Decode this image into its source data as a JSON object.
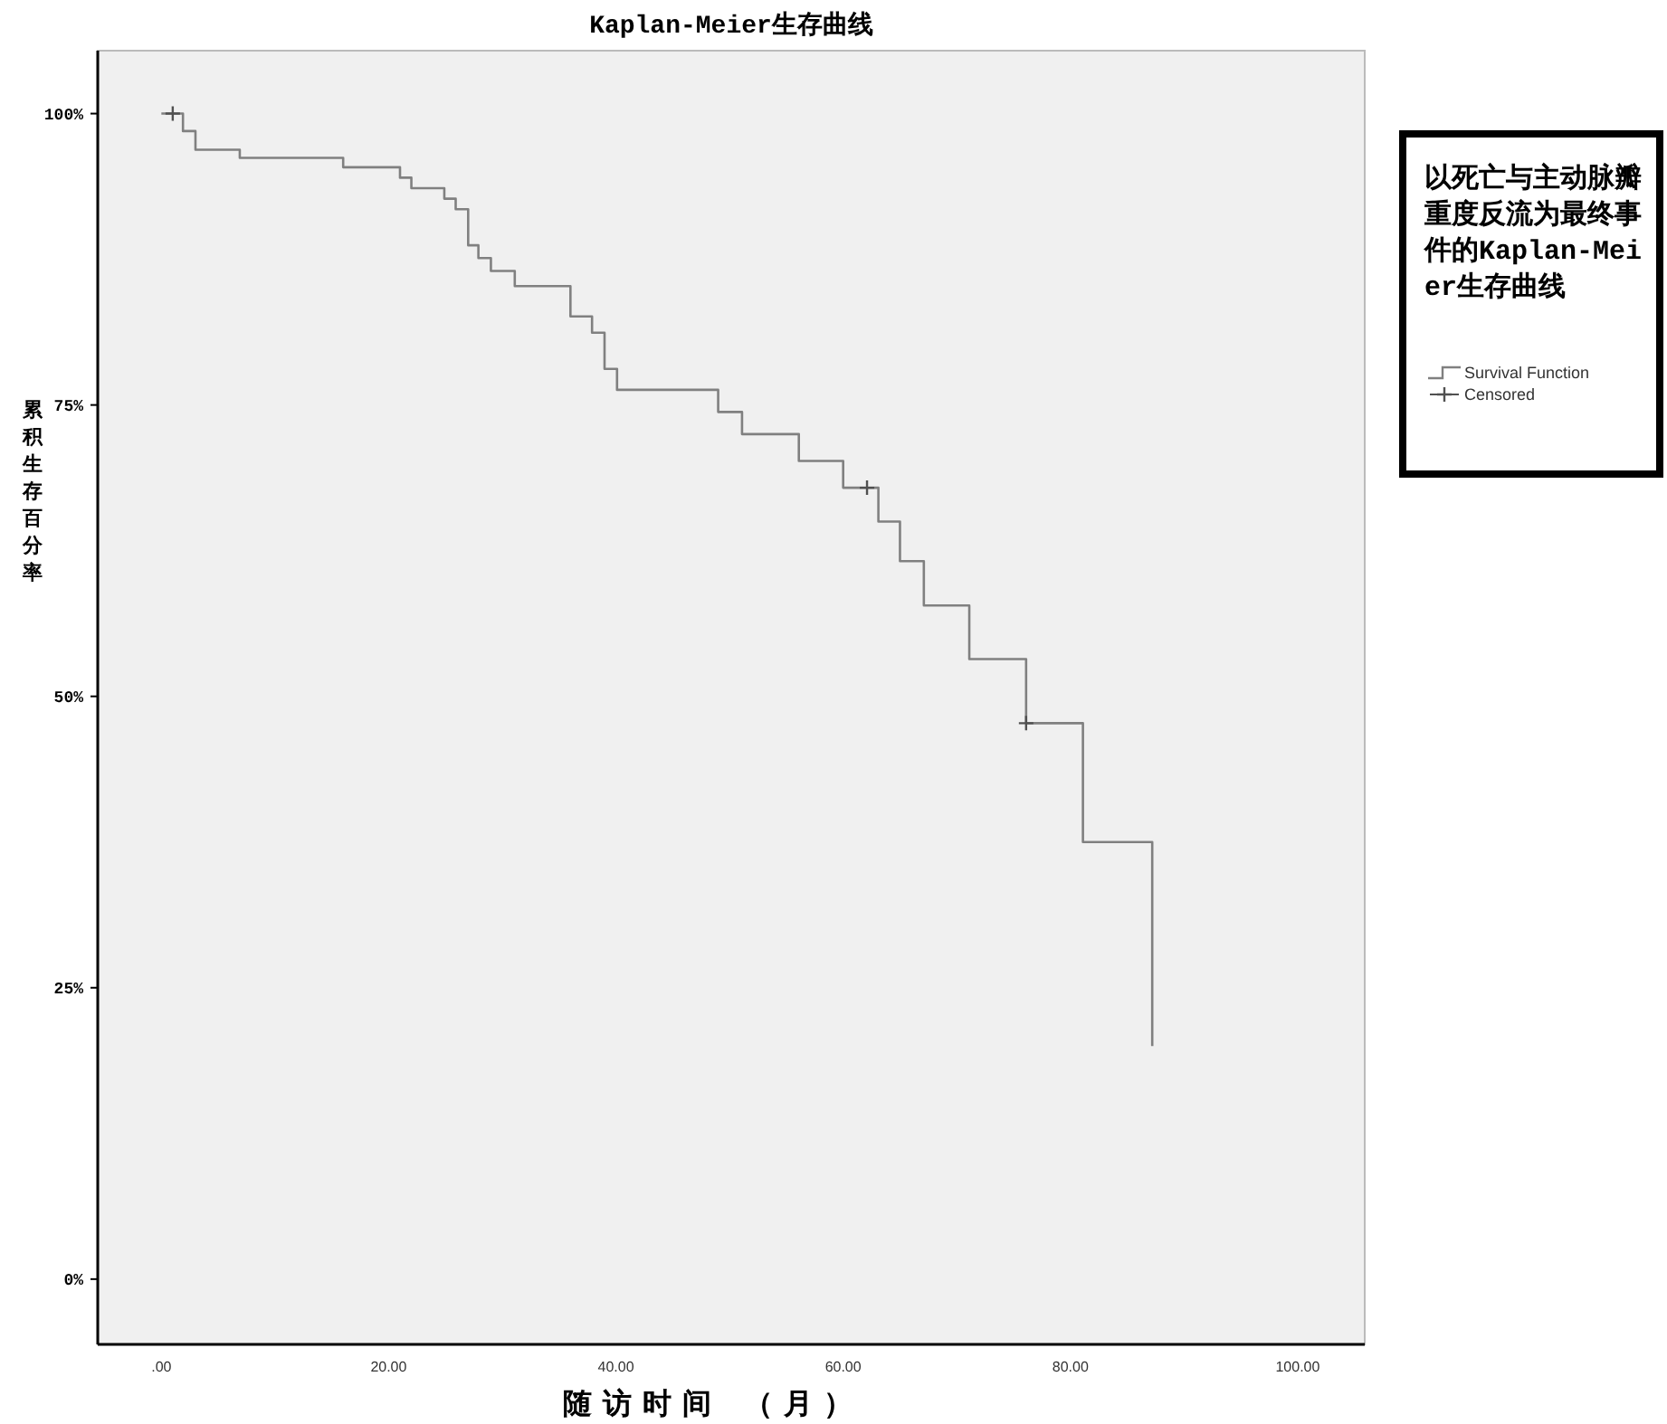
{
  "chart_data": {
    "type": "step",
    "title": "Kaplan-Meier生存曲线",
    "xlabel": "随访时间 （月）",
    "ylabel": "累积生存百分率",
    "legend_title": "以死亡与主动脉瓣重度反流为最终事件的Kaplan-Meier生存曲线",
    "legend": "right",
    "xlim": [
      -5.6,
      105.9
    ],
    "ylim": [
      -5.6,
      105.4
    ],
    "xticks": [
      {
        "value": 0,
        "label": ".00"
      },
      {
        "value": 20,
        "label": "20.00"
      },
      {
        "value": 40,
        "label": "40.00"
      },
      {
        "value": 60,
        "label": "60.00"
      },
      {
        "value": 80,
        "label": "80.00"
      },
      {
        "value": 100,
        "label": "100.00"
      }
    ],
    "yticks": [
      {
        "value": 0,
        "label": "0%"
      },
      {
        "value": 25,
        "label": "25%"
      },
      {
        "value": 50,
        "label": "50%"
      },
      {
        "value": 75,
        "label": "75%"
      },
      {
        "value": 100,
        "label": "100%"
      }
    ],
    "series": [
      {
        "name": "Survival Function",
        "color": "#808080",
        "x": [
          0,
          1.9,
          3.0,
          6.9,
          16.0,
          21.0,
          22.0,
          24.9,
          25.9,
          27.0,
          27.9,
          29.0,
          31.1,
          36.0,
          37.9,
          39.0,
          40.1,
          49.0,
          51.1,
          56.1,
          60.0,
          63.1,
          65.0,
          67.1,
          71.1,
          76.1,
          81.1,
          87.2
        ],
        "values": [
          100,
          98.5,
          96.9,
          96.2,
          95.4,
          94.5,
          93.6,
          92.7,
          91.8,
          88.7,
          87.6,
          86.5,
          85.2,
          82.6,
          81.2,
          78.1,
          76.3,
          74.4,
          72.5,
          70.2,
          67.9,
          65.0,
          61.6,
          57.8,
          53.2,
          47.7,
          37.5,
          20.0
        ]
      },
      {
        "name": "Censored",
        "type": "scatter",
        "marker": "cross",
        "color": "#505050",
        "x": [
          1.0,
          62.1,
          76.1
        ],
        "values": [
          100,
          67.9,
          47.7
        ]
      }
    ]
  }
}
